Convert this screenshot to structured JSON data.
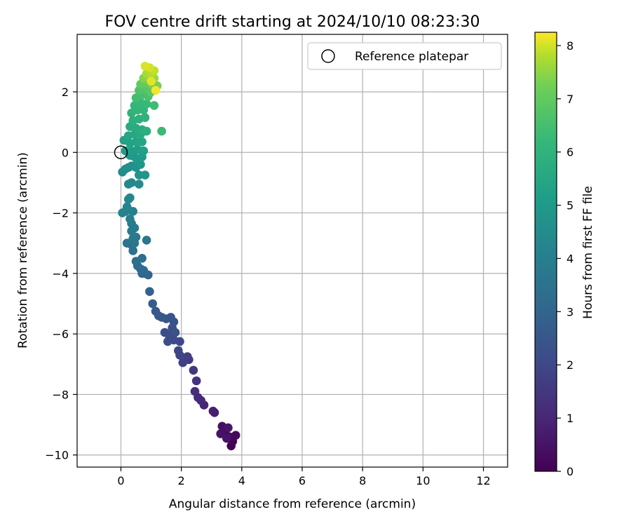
{
  "chart_data": {
    "type": "scatter",
    "title": "FOV centre drift starting at 2024/10/10 08:23:30",
    "xlabel": "Angular distance from reference (arcmin)",
    "ylabel": "Rotation from reference (arcmin)",
    "xlim": [
      -1.45,
      12.8
    ],
    "ylim": [
      -10.4,
      3.9
    ],
    "xticks": [
      0,
      2,
      4,
      6,
      8,
      10,
      12
    ],
    "yticks": [
      -10,
      -8,
      -6,
      -4,
      -2,
      0,
      2
    ],
    "grid": true,
    "legend": {
      "placement": "top-right",
      "entries": [
        {
          "label": "Reference platepar",
          "marker": "open-circle",
          "x": 0,
          "y": 0
        }
      ]
    },
    "colorbar": {
      "label": "Hours from first FF file",
      "colormap": "viridis",
      "range": [
        0,
        8.25
      ],
      "ticks": [
        0,
        1,
        2,
        3,
        4,
        5,
        6,
        7,
        8
      ]
    },
    "series": [
      {
        "points": [
          [
            3.65,
            -9.7
          ],
          [
            3.7,
            -9.55
          ],
          [
            3.8,
            -9.35
          ],
          [
            3.6,
            -9.4
          ],
          [
            3.45,
            -9.25
          ],
          [
            3.35,
            -9.05
          ],
          [
            3.3,
            -9.3
          ],
          [
            3.5,
            -9.45
          ],
          [
            3.55,
            -9.1
          ],
          [
            3.1,
            -8.6
          ],
          [
            3.05,
            -8.55
          ],
          [
            2.75,
            -8.35
          ],
          [
            2.65,
            -8.2
          ],
          [
            2.55,
            -8.1
          ],
          [
            2.45,
            -7.9
          ],
          [
            2.5,
            -7.55
          ],
          [
            2.4,
            -7.2
          ],
          [
            2.25,
            -6.85
          ],
          [
            2.2,
            -6.75
          ],
          [
            2.05,
            -6.95
          ],
          [
            1.95,
            -6.7
          ],
          [
            1.9,
            -6.55
          ],
          [
            1.95,
            -6.25
          ],
          [
            1.75,
            -6.2
          ],
          [
            1.6,
            -6.05
          ],
          [
            1.55,
            -6.25
          ],
          [
            1.45,
            -5.95
          ],
          [
            1.7,
            -5.8
          ],
          [
            1.8,
            -5.95
          ],
          [
            1.75,
            -5.6
          ],
          [
            1.65,
            -5.45
          ],
          [
            1.5,
            -5.5
          ],
          [
            1.35,
            -5.45
          ],
          [
            1.25,
            -5.4
          ],
          [
            1.15,
            -5.25
          ],
          [
            1.05,
            -5.0
          ],
          [
            0.95,
            -4.6
          ],
          [
            0.9,
            -4.05
          ],
          [
            0.8,
            -4.0
          ],
          [
            0.75,
            -3.9
          ],
          [
            0.7,
            -4.0
          ],
          [
            0.65,
            -3.85
          ],
          [
            0.55,
            -3.75
          ],
          [
            0.5,
            -3.6
          ],
          [
            0.7,
            -3.5
          ],
          [
            0.4,
            -3.25
          ],
          [
            0.35,
            -3.05
          ],
          [
            0.2,
            -3.0
          ],
          [
            0.45,
            -3.0
          ],
          [
            0.85,
            -2.9
          ],
          [
            0.4,
            -2.85
          ],
          [
            0.5,
            -2.8
          ],
          [
            0.35,
            -2.6
          ],
          [
            0.45,
            -2.5
          ],
          [
            0.35,
            -2.35
          ],
          [
            0.3,
            -2.2
          ],
          [
            0.4,
            -1.95
          ],
          [
            0.25,
            -1.9
          ],
          [
            0.15,
            -1.95
          ],
          [
            0.05,
            -2.0
          ],
          [
            0.2,
            -1.8
          ],
          [
            0.25,
            -1.55
          ],
          [
            0.3,
            -1.5
          ],
          [
            0.25,
            -1.05
          ],
          [
            0.35,
            -1.0
          ],
          [
            0.6,
            -1.05
          ],
          [
            0.05,
            -0.65
          ],
          [
            0.15,
            -0.55
          ],
          [
            0.25,
            -0.5
          ],
          [
            0.35,
            -0.45
          ],
          [
            0.5,
            -0.5
          ],
          [
            0.6,
            -0.75
          ],
          [
            0.8,
            -0.75
          ],
          [
            0.65,
            -0.4
          ],
          [
            0.55,
            -0.3
          ],
          [
            0.3,
            -0.1
          ],
          [
            0.45,
            -0.15
          ],
          [
            0.7,
            -0.15
          ],
          [
            0.15,
            0.05
          ],
          [
            0.35,
            0.05
          ],
          [
            0.55,
            0.1
          ],
          [
            0.75,
            0.05
          ],
          [
            0.1,
            0.4
          ],
          [
            0.3,
            0.3
          ],
          [
            0.5,
            0.35
          ],
          [
            0.7,
            0.35
          ],
          [
            0.25,
            0.55
          ],
          [
            0.45,
            0.6
          ],
          [
            0.65,
            0.6
          ],
          [
            0.3,
            0.85
          ],
          [
            0.5,
            0.8
          ],
          [
            0.7,
            0.75
          ],
          [
            0.85,
            0.7
          ],
          [
            1.35,
            0.7
          ],
          [
            0.4,
            1.05
          ],
          [
            0.6,
            1.1
          ],
          [
            0.8,
            1.15
          ],
          [
            0.35,
            1.3
          ],
          [
            0.55,
            1.4
          ],
          [
            0.75,
            1.4
          ],
          [
            0.45,
            1.55
          ],
          [
            0.65,
            1.65
          ],
          [
            0.85,
            1.6
          ],
          [
            1.1,
            1.55
          ],
          [
            0.5,
            1.8
          ],
          [
            0.7,
            1.9
          ],
          [
            0.9,
            1.85
          ],
          [
            0.6,
            2.05
          ],
          [
            0.8,
            2.1
          ],
          [
            1.0,
            2.0
          ],
          [
            0.65,
            2.25
          ],
          [
            0.85,
            2.3
          ],
          [
            1.05,
            2.25
          ],
          [
            1.2,
            2.2
          ],
          [
            0.75,
            2.45
          ],
          [
            0.95,
            2.45
          ],
          [
            1.1,
            2.45
          ],
          [
            0.85,
            2.6
          ],
          [
            1.0,
            2.6
          ],
          [
            1.1,
            2.7
          ],
          [
            0.95,
            2.8
          ],
          [
            0.8,
            2.85
          ],
          [
            1.0,
            2.35
          ],
          [
            1.15,
            2.05
          ]
        ],
        "hours": [
          0.05,
          0.1,
          0.2,
          0.25,
          0.3,
          0.4,
          0.45,
          0.5,
          0.55,
          0.75,
          0.8,
          0.95,
          1.05,
          1.1,
          1.2,
          1.35,
          1.5,
          1.65,
          1.7,
          1.75,
          1.85,
          1.9,
          2.0,
          2.05,
          2.1,
          2.15,
          2.2,
          2.25,
          2.3,
          2.35,
          2.4,
          2.45,
          2.5,
          2.55,
          2.6,
          2.7,
          2.85,
          3.0,
          3.05,
          3.1,
          3.15,
          3.2,
          3.25,
          3.3,
          3.35,
          3.45,
          3.5,
          3.55,
          3.6,
          3.65,
          3.7,
          3.75,
          3.8,
          3.85,
          3.9,
          3.95,
          4.0,
          4.05,
          4.1,
          4.15,
          4.2,
          4.25,
          4.3,
          4.35,
          4.4,
          4.45,
          4.5,
          4.55,
          4.6,
          4.65,
          4.7,
          4.75,
          4.8,
          4.85,
          4.9,
          4.95,
          5.0,
          5.05,
          5.1,
          5.15,
          5.2,
          5.25,
          5.3,
          5.35,
          5.4,
          5.45,
          5.5,
          5.55,
          5.6,
          5.65,
          5.7,
          5.75,
          5.8,
          6.3,
          5.85,
          5.9,
          5.95,
          6.0,
          6.05,
          6.1,
          6.15,
          6.2,
          6.25,
          6.35,
          6.4,
          6.5,
          6.6,
          6.7,
          6.8,
          6.9,
          7.0,
          7.1,
          7.2,
          7.3,
          7.4,
          7.5,
          7.6,
          7.7,
          7.8,
          7.9,
          8.0,
          8.05,
          8.1,
          8.2
        ]
      }
    ]
  }
}
